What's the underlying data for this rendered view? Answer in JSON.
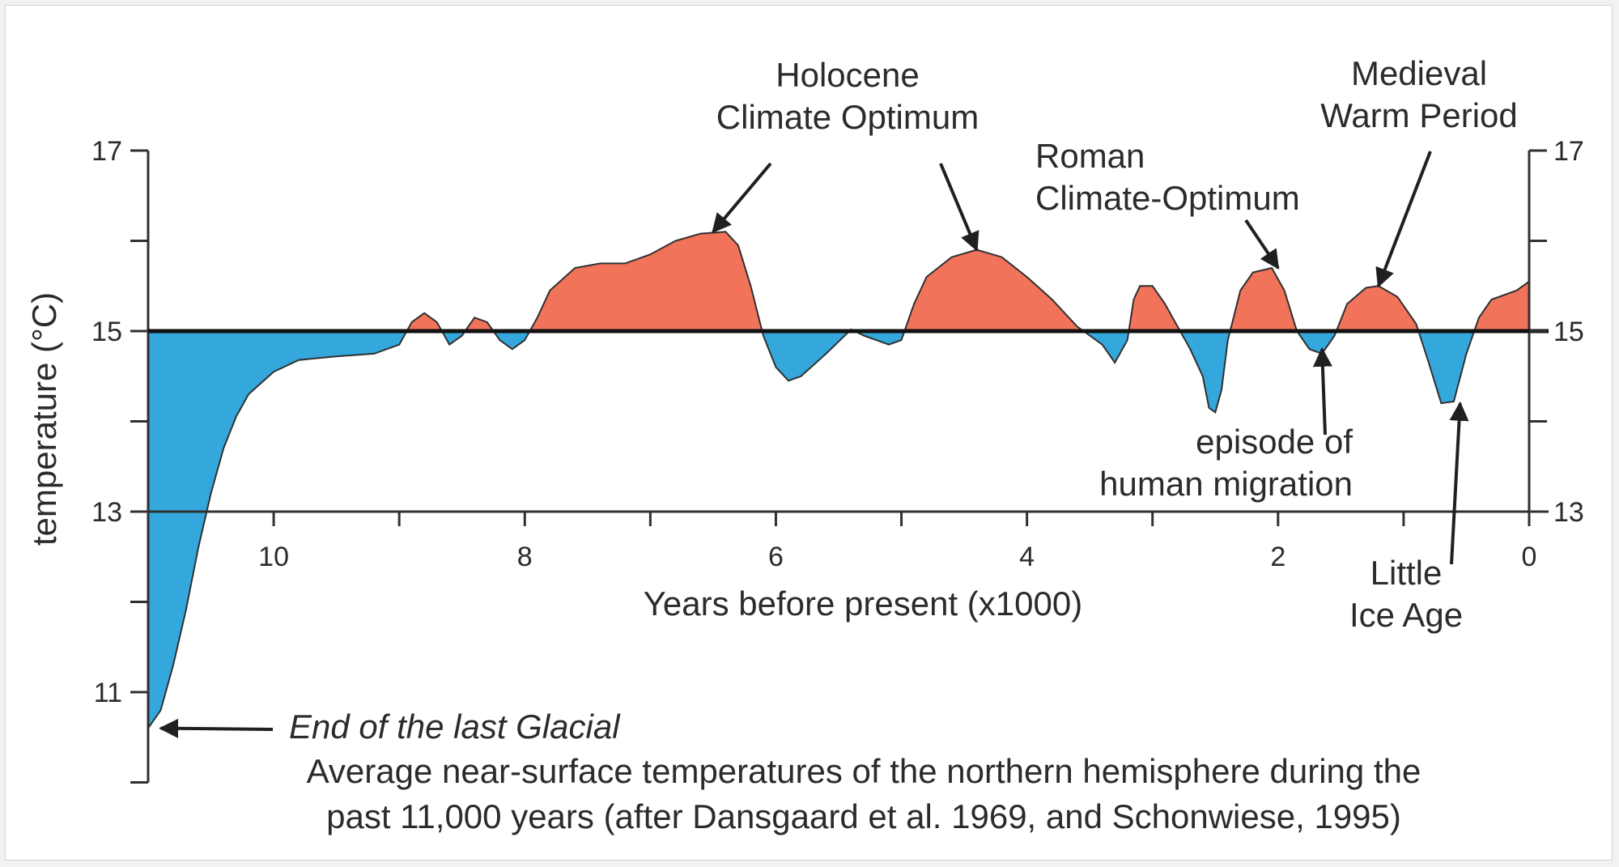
{
  "chart_data": {
    "type": "area",
    "baseline": 15,
    "xlabel": "Years before present (x1000)",
    "ylabel": "temperature (°C)",
    "xlim": [
      11,
      0
    ],
    "ylim": [
      10,
      17
    ],
    "x_ticks": [
      10,
      8,
      6,
      4,
      2,
      0
    ],
    "y_ticks": [
      17,
      15,
      13,
      11
    ],
    "colors": {
      "above": "#f0735a",
      "below": "#34a8dc",
      "line": "#303030"
    },
    "caption": [
      "Average near-surface temperatures of the northern hemisphere during the",
      "past 11,000 years (after Dansgaard et al. 1969, and Schonwiese, 1995)"
    ],
    "annotations": [
      {
        "id": "glacial",
        "lines": [
          "End of the last Glacial"
        ],
        "italic": true,
        "target": [
          10.9,
          10.6
        ]
      },
      {
        "id": "holocene",
        "lines": [
          "Holocene",
          "Climate Optimum"
        ],
        "targets": [
          [
            6.5,
            16.1
          ],
          [
            4.4,
            15.9
          ]
        ]
      },
      {
        "id": "roman",
        "lines": [
          "Roman",
          "Climate-Optimum"
        ],
        "targets": [
          [
            2.0,
            15.7
          ]
        ]
      },
      {
        "id": "medieval",
        "lines": [
          "Medieval",
          "Warm Period"
        ],
        "targets": [
          [
            1.2,
            15.5
          ]
        ]
      },
      {
        "id": "migration",
        "lines": [
          "episode of",
          "human migration"
        ],
        "targets": [
          [
            1.65,
            14.8
          ]
        ]
      },
      {
        "id": "lia",
        "lines": [
          "Little",
          "Ice Age"
        ],
        "targets": [
          [
            0.55,
            14.2
          ]
        ]
      }
    ],
    "series": [
      {
        "values": [
          [
            11.0,
            10.6
          ],
          [
            10.9,
            10.8
          ],
          [
            10.8,
            11.3
          ],
          [
            10.7,
            11.9
          ],
          [
            10.6,
            12.6
          ],
          [
            10.5,
            13.2
          ],
          [
            10.4,
            13.7
          ],
          [
            10.3,
            14.05
          ],
          [
            10.2,
            14.3
          ],
          [
            10.0,
            14.55
          ],
          [
            9.8,
            14.68
          ],
          [
            9.5,
            14.72
          ],
          [
            9.2,
            14.75
          ],
          [
            9.0,
            14.85
          ],
          [
            8.9,
            15.1
          ],
          [
            8.8,
            15.2
          ],
          [
            8.7,
            15.1
          ],
          [
            8.6,
            14.85
          ],
          [
            8.5,
            14.95
          ],
          [
            8.4,
            15.15
          ],
          [
            8.3,
            15.1
          ],
          [
            8.2,
            14.9
          ],
          [
            8.1,
            14.8
          ],
          [
            8.0,
            14.9
          ],
          [
            7.9,
            15.15
          ],
          [
            7.8,
            15.45
          ],
          [
            7.6,
            15.7
          ],
          [
            7.4,
            15.75
          ],
          [
            7.2,
            15.75
          ],
          [
            7.0,
            15.85
          ],
          [
            6.8,
            16.0
          ],
          [
            6.6,
            16.08
          ],
          [
            6.4,
            16.1
          ],
          [
            6.3,
            15.95
          ],
          [
            6.2,
            15.5
          ],
          [
            6.1,
            14.95
          ],
          [
            6.0,
            14.6
          ],
          [
            5.9,
            14.45
          ],
          [
            5.8,
            14.5
          ],
          [
            5.6,
            14.75
          ],
          [
            5.4,
            15.02
          ],
          [
            5.3,
            14.95
          ],
          [
            5.1,
            14.85
          ],
          [
            5.0,
            14.9
          ],
          [
            4.9,
            15.3
          ],
          [
            4.8,
            15.6
          ],
          [
            4.6,
            15.82
          ],
          [
            4.4,
            15.9
          ],
          [
            4.2,
            15.82
          ],
          [
            4.0,
            15.6
          ],
          [
            3.8,
            15.35
          ],
          [
            3.6,
            15.05
          ],
          [
            3.4,
            14.85
          ],
          [
            3.3,
            14.65
          ],
          [
            3.2,
            14.9
          ],
          [
            3.15,
            15.35
          ],
          [
            3.1,
            15.5
          ],
          [
            3.0,
            15.5
          ],
          [
            2.9,
            15.3
          ],
          [
            2.8,
            15.05
          ],
          [
            2.7,
            14.8
          ],
          [
            2.6,
            14.5
          ],
          [
            2.55,
            14.15
          ],
          [
            2.5,
            14.1
          ],
          [
            2.45,
            14.35
          ],
          [
            2.4,
            14.9
          ],
          [
            2.3,
            15.45
          ],
          [
            2.2,
            15.65
          ],
          [
            2.05,
            15.7
          ],
          [
            1.95,
            15.45
          ],
          [
            1.85,
            15.0
          ],
          [
            1.75,
            14.8
          ],
          [
            1.65,
            14.75
          ],
          [
            1.55,
            14.95
          ],
          [
            1.45,
            15.3
          ],
          [
            1.3,
            15.48
          ],
          [
            1.2,
            15.5
          ],
          [
            1.05,
            15.38
          ],
          [
            0.9,
            15.08
          ],
          [
            0.8,
            14.65
          ],
          [
            0.7,
            14.2
          ],
          [
            0.6,
            14.22
          ],
          [
            0.5,
            14.75
          ],
          [
            0.4,
            15.15
          ],
          [
            0.3,
            15.35
          ],
          [
            0.1,
            15.45
          ],
          [
            0.0,
            15.55
          ]
        ]
      }
    ]
  }
}
